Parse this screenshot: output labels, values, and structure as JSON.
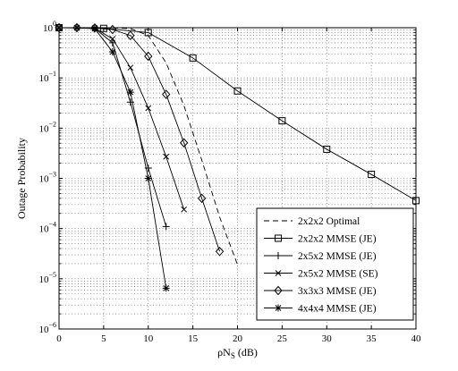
{
  "chart_data": {
    "type": "line",
    "title": "",
    "xlabel": "ρN_S (dB)",
    "ylabel": "Outage Probability",
    "xlim": [
      0,
      40
    ],
    "ylim": [
      1e-06,
      1
    ],
    "yscale": "log",
    "grid": true,
    "grid_style": "dotted",
    "legend_position": "bottom-right",
    "x_ticks": [
      "0",
      "5",
      "10",
      "15",
      "20",
      "25",
      "30",
      "35",
      "40"
    ],
    "y_ticks": [
      {
        "base": "10",
        "exp": "0"
      },
      {
        "base": "10",
        "exp": "−1"
      },
      {
        "base": "10",
        "exp": "−2"
      },
      {
        "base": "10",
        "exp": "−3"
      },
      {
        "base": "10",
        "exp": "−4"
      },
      {
        "base": "10",
        "exp": "−5"
      },
      {
        "base": "10",
        "exp": "−6"
      }
    ],
    "series": [
      {
        "name": "2x2x2 Optimal",
        "marker": "none",
        "dash": "dashed",
        "x": [
          0,
          2,
          4,
          6,
          8,
          10,
          12,
          14,
          16,
          18,
          20
        ],
        "y": [
          1,
          1,
          1,
          0.995,
          0.96,
          0.7,
          0.2,
          0.028,
          0.0023,
          0.00017,
          1.9e-05
        ]
      },
      {
        "name": "2x2x2 MMSE (JE)",
        "marker": "square",
        "dash": "solid",
        "x": [
          0,
          5,
          10,
          15,
          20,
          25,
          30,
          35,
          40
        ],
        "y": [
          1,
          0.97,
          0.8,
          0.25,
          0.055,
          0.014,
          0.0038,
          0.0012,
          0.00036
        ]
      },
      {
        "name": "2x5x2 MMSE (JE)",
        "marker": "plus",
        "dash": "solid",
        "x": [
          0,
          2,
          4,
          6,
          8,
          10,
          12
        ],
        "y": [
          1,
          1,
          0.97,
          0.5,
          0.033,
          0.0016,
          0.00011
        ]
      },
      {
        "name": "2x5x2 MMSE (SE)",
        "marker": "x",
        "dash": "solid",
        "x": [
          0,
          2,
          4,
          6,
          8,
          10,
          12,
          14
        ],
        "y": [
          1,
          1,
          0.98,
          0.6,
          0.16,
          0.025,
          0.0027,
          0.00024
        ]
      },
      {
        "name": "3x3x3 MMSE (JE)",
        "marker": "diamond",
        "dash": "solid",
        "x": [
          0,
          2,
          4,
          6,
          8,
          10,
          12,
          14,
          16,
          18
        ],
        "y": [
          1,
          1,
          0.99,
          0.92,
          0.7,
          0.27,
          0.047,
          0.0051,
          0.0004,
          3.5e-05
        ]
      },
      {
        "name": "4x4x4 MMSE (JE)",
        "marker": "asterisk",
        "dash": "solid",
        "x": [
          0,
          2,
          4,
          6,
          8,
          10,
          12
        ],
        "y": [
          1,
          1,
          0.96,
          0.33,
          0.052,
          0.001,
          6.5e-06
        ]
      }
    ]
  }
}
